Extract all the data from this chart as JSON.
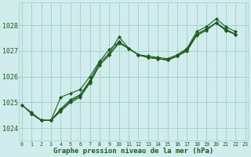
{
  "background_color": "#d0ecec",
  "grid_color": "#a0cccc",
  "line_color": "#1a5c1a",
  "xlabel": "Graphe pression niveau de la mer (hPa)",
  "ylim": [
    1023.5,
    1028.9
  ],
  "xlim": [
    -0.3,
    23.3
  ],
  "yticks": [
    1024,
    1025,
    1026,
    1027,
    1028
  ],
  "xticks": [
    0,
    1,
    2,
    3,
    4,
    5,
    6,
    7,
    8,
    9,
    10,
    11,
    12,
    13,
    14,
    15,
    16,
    17,
    18,
    19,
    20,
    21,
    22,
    23
  ],
  "series": [
    {
      "x": [
        0,
        1,
        2,
        3,
        4,
        5,
        6,
        7,
        8,
        9,
        10,
        11,
        12,
        13,
        14,
        15,
        16,
        17,
        18,
        19,
        20,
        21,
        22
      ],
      "y": [
        1024.9,
        1024.6,
        1024.3,
        1024.35,
        1024.75,
        1025.1,
        1025.25,
        1025.85,
        1026.5,
        1026.9,
        1027.55,
        1027.1,
        1026.85,
        1026.8,
        1026.75,
        1026.7,
        1026.85,
        1027.15,
        1027.75,
        1027.95,
        1028.25,
        1027.95,
        1027.75
      ]
    },
    {
      "x": [
        0,
        1,
        2,
        3,
        4,
        5,
        6,
        7,
        8,
        9,
        10,
        11,
        12,
        13,
        14,
        15,
        16,
        17,
        18,
        19,
        20,
        21,
        22
      ],
      "y": [
        1024.9,
        1024.55,
        1024.3,
        1024.3,
        1024.65,
        1025.0,
        1025.2,
        1025.75,
        1026.4,
        1026.85,
        1027.35,
        1027.1,
        1026.85,
        1026.75,
        1026.7,
        1026.65,
        1026.8,
        1027.05,
        1027.65,
        1027.85,
        1028.15,
        1027.8,
        1027.65
      ]
    },
    {
      "x": [
        1,
        2,
        3,
        4,
        5,
        6,
        7,
        8,
        9,
        10,
        11,
        12,
        13,
        14,
        15,
        16,
        17,
        18,
        19,
        20,
        21,
        22
      ],
      "y": [
        1024.6,
        1024.3,
        1024.3,
        1025.2,
        1025.35,
        1025.55,
        1026.0,
        1026.65,
        1027.1,
        1027.35,
        1027.1,
        1026.85,
        1026.75,
        1026.7,
        1026.65,
        1026.8,
        1027.0,
        1027.6,
        1027.8,
        1028.1,
        1027.85,
        1027.65
      ]
    },
    {
      "x": [
        1,
        2,
        3,
        4,
        5,
        6,
        7,
        8,
        9,
        10,
        11,
        12,
        13,
        14,
        15,
        16,
        17,
        18,
        19,
        20,
        21,
        22
      ],
      "y": [
        1024.6,
        1024.3,
        1024.3,
        1024.65,
        1025.0,
        1025.2,
        1025.75,
        1026.4,
        1026.85,
        1027.45,
        1027.1,
        1026.85,
        1026.75,
        1026.7,
        1026.65,
        1026.8,
        1027.05,
        1027.65,
        1027.85,
        1028.15,
        1027.8,
        1027.65
      ]
    }
  ]
}
